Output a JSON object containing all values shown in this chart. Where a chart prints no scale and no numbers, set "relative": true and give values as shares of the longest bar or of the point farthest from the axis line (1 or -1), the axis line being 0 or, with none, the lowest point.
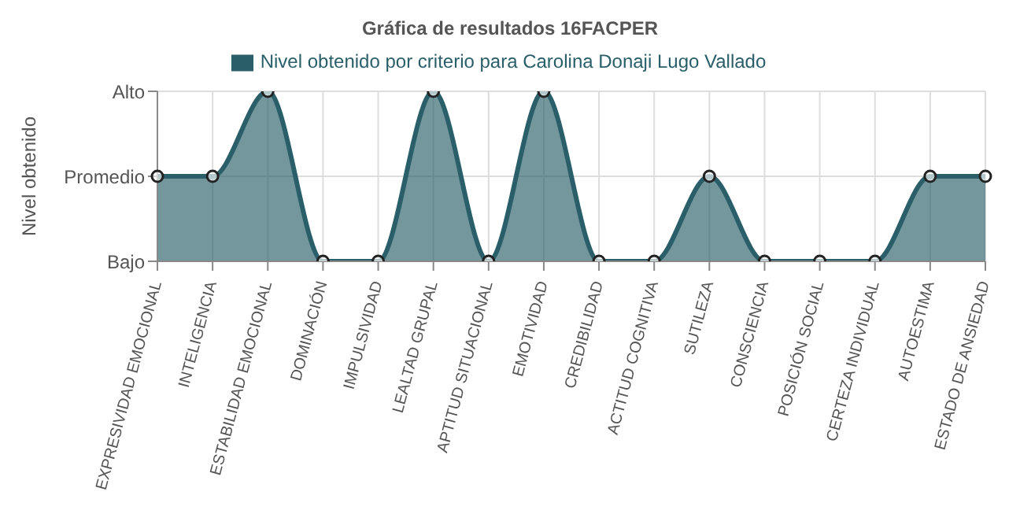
{
  "chart_data": {
    "type": "area",
    "title": "Gráfica de resultados 16FACPER",
    "ylabel": "Nivel obtenido",
    "categories": [
      "EXPRESIVIDAD EMOCIONAL",
      "INTELIGENCIA",
      "ESTABILIDAD EMOCIONAL",
      "DOMINACIÓN",
      "IMPULSIVIDAD",
      "LEALTAD GRUPAL",
      "APTITUD SITUACIONAL",
      "EMOTIVIDAD",
      "CREDIBILIDAD",
      "ACTITUD COGNITIVA",
      "SUTILEZA",
      "CONSCIENCIA",
      "POSICIÓN SOCIAL",
      "CERTEZA INDIVIDUAL",
      "AUTOESTIMA",
      "ESTADO DE ANSIEDAD"
    ],
    "series": [
      {
        "name": "Nivel obtenido por criterio para Carolina Donaji Lugo Vallado",
        "color": "#2a5f6a",
        "values": [
          0.5,
          0.5,
          1,
          0,
          0,
          1,
          0,
          1,
          0,
          0,
          0.5,
          0,
          0,
          0,
          0.5,
          0.5
        ]
      }
    ],
    "relative": true,
    "annotations": [
      "Bajo",
      "Promedio",
      "Alto"
    ],
    "grid": true,
    "legend": "top",
    "marker": "circle"
  }
}
